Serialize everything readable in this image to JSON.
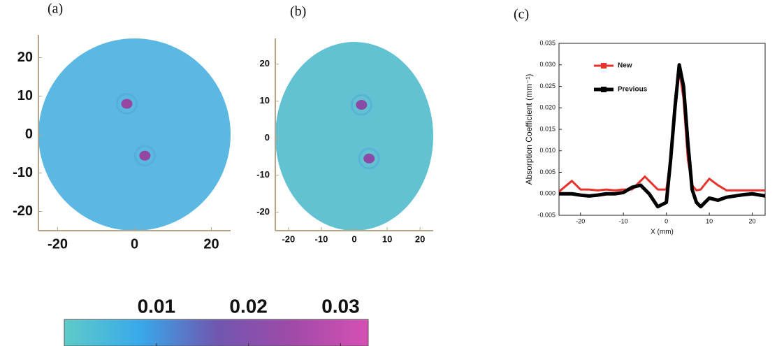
{
  "chart_data": [
    {
      "type": "image",
      "label": "(a)",
      "xlim": [
        -25,
        25
      ],
      "ylim": [
        -25,
        25
      ],
      "xticks": [
        -20,
        0,
        20
      ],
      "yticks": [
        20,
        10,
        0,
        -10,
        -20
      ],
      "background": "#5ab8e2",
      "spot_color": "#94489f",
      "spots": [
        {
          "x": -2,
          "y": 8
        },
        {
          "x": 2.7,
          "y": -5.5
        }
      ]
    },
    {
      "type": "image",
      "label": "(b)",
      "xlim": [
        -24,
        24
      ],
      "ylim": [
        -25,
        26
      ],
      "xticks": [
        -20,
        -10,
        0,
        10,
        20
      ],
      "yticks": [
        20,
        10,
        0,
        -10,
        -20
      ],
      "background": "#62c2d2",
      "spot_color": "#8a4aa5",
      "spots": [
        {
          "x": 2.2,
          "y": 9
        },
        {
          "x": 4.5,
          "y": -5.5
        }
      ]
    },
    {
      "type": "line",
      "label": "(c)",
      "xlabel": "X (mm)",
      "ylabel": "Absorption Coefficient (mm⁻¹)",
      "xlim": [
        -25,
        23
      ],
      "ylim": [
        -0.005,
        0.035
      ],
      "xticks": [
        -20,
        -10,
        0,
        10,
        20
      ],
      "yticks": [
        {
          "value": -0.005,
          "label": "-0.005"
        },
        {
          "value": 0,
          "label": "0.000"
        },
        {
          "value": 0.005,
          "label": "0.005"
        },
        {
          "value": 0.01,
          "label": "0.010"
        },
        {
          "value": 0.015,
          "label": "0.015"
        },
        {
          "value": 0.02,
          "label": "0.020"
        },
        {
          "value": 0.025,
          "label": "0.025"
        },
        {
          "value": 0.03,
          "label": "0.030"
        },
        {
          "value": 0.035,
          "label": "0.035"
        }
      ],
      "x": [
        -25,
        -22,
        -20,
        -18,
        -16,
        -14,
        -12,
        -10,
        -8,
        -6,
        -5,
        -4,
        -2,
        0,
        1,
        2,
        3,
        4,
        5,
        6,
        7,
        8,
        10,
        12,
        14,
        16,
        18,
        20,
        23
      ],
      "series": [
        {
          "name": "New",
          "color": "#e8322c",
          "values": [
            0.0005,
            0.003,
            0.001,
            0.001,
            0.0008,
            0.001,
            0.0008,
            0.001,
            0.001,
            0.003,
            0.004,
            0.003,
            0.001,
            0.001,
            0.008,
            0.022,
            0.029,
            0.022,
            0.008,
            0.002,
            0.0008,
            0.001,
            0.0035,
            0.002,
            0.0008,
            0.0008,
            0.0008,
            0.0008,
            0.0008
          ]
        },
        {
          "name": "Previous",
          "color": "#000000",
          "values": [
            0,
            0,
            -0.0003,
            -0.0005,
            -0.0003,
            0,
            0,
            0.0003,
            0.0015,
            0.002,
            0.001,
            0,
            -0.003,
            -0.002,
            0.008,
            0.02,
            0.03,
            0.025,
            0.012,
            0.001,
            -0.002,
            -0.003,
            -0.001,
            -0.0015,
            -0.0008,
            -0.0005,
            -0.0002,
            0,
            -0.0005
          ]
        }
      ]
    },
    {
      "type": "colorbar",
      "xlim": [
        0,
        0.033
      ],
      "xticks": [
        0.01,
        0.02,
        0.03
      ],
      "colors": [
        "#5fcbc8",
        "#38a9ea",
        "#6f57b0",
        "#a04aa8",
        "#d651b3"
      ]
    }
  ]
}
